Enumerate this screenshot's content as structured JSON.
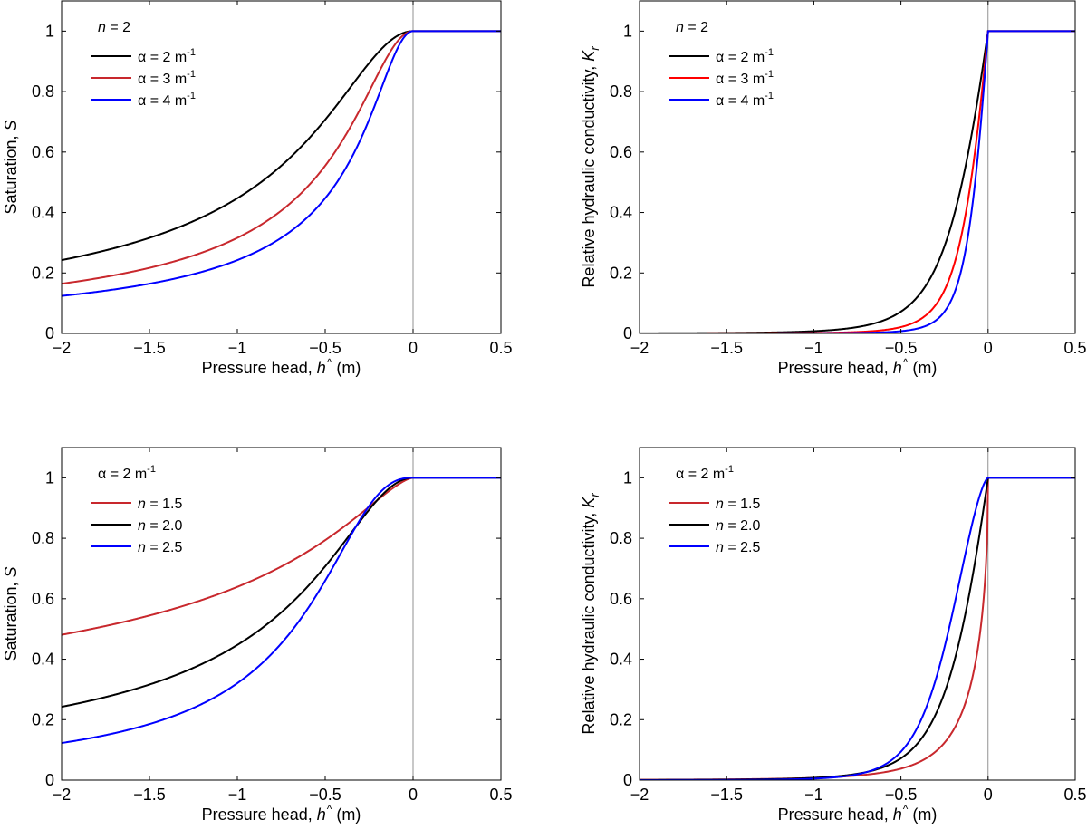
{
  "chart_data": [
    {
      "type": "line",
      "panel": "top-left",
      "xlabel": {
        "pre": "Pressure head, ",
        "var": "h",
        "hat": "^",
        "post": " (m)"
      },
      "ylabel": {
        "pre": "Saturation, ",
        "var": "S",
        "sub": ""
      },
      "xlim": [
        -2,
        0.5
      ],
      "ylim": [
        0,
        1.1
      ],
      "xticks": [
        "-2",
        "-1.5",
        "-1",
        "-0.5",
        "0",
        "0.5"
      ],
      "yticks": [
        "0",
        "0.2",
        "0.4",
        "0.6",
        "0.8",
        "1"
      ],
      "legend_title": {
        "var": "n",
        "text": " = 2",
        "sup": ""
      },
      "legend_placement": "top-left",
      "quantity": "S",
      "x_samples": [
        -2,
        -1.5,
        -1,
        -0.5,
        -0.25,
        0,
        0.5
      ],
      "series": [
        {
          "label": "α = 2 m",
          "sup": "-1",
          "alpha": 2,
          "n": 2,
          "color": "#000000",
          "values": [
            0.243,
            0.316,
            0.447,
            0.707,
            0.894,
            1,
            1
          ]
        },
        {
          "label": "α = 3 m",
          "sup": "-1",
          "alpha": 3,
          "n": 2,
          "color": "#c8282d",
          "values": [
            0.164,
            0.217,
            0.316,
            0.555,
            0.8,
            1,
            1
          ]
        },
        {
          "label": "α = 4 m",
          "sup": "-1",
          "alpha": 4,
          "n": 2,
          "color": "#0000ff",
          "values": [
            0.124,
            0.164,
            0.243,
            0.447,
            0.707,
            1,
            1
          ]
        }
      ]
    },
    {
      "type": "line",
      "panel": "top-right",
      "xlabel": {
        "pre": "Pressure head, ",
        "var": "h",
        "hat": "^",
        "post": " (m)"
      },
      "ylabel": {
        "pre": "Relative hydraulic conductivity, ",
        "var": "K",
        "sub": "r"
      },
      "xlim": [
        -2,
        0.5
      ],
      "ylim": [
        0,
        1.1
      ],
      "xticks": [
        "-2",
        "-1.5",
        "-1",
        "-0.5",
        "0",
        "0.5"
      ],
      "yticks": [
        "0",
        "0.2",
        "0.4",
        "0.6",
        "0.8",
        "1"
      ],
      "legend_title": {
        "var": "n",
        "text": " = 2",
        "sup": ""
      },
      "legend_placement": "top-left",
      "quantity": "Kr",
      "x_samples": [
        -2,
        -1,
        -0.5,
        -0.25,
        0,
        0.5
      ],
      "series": [
        {
          "label": "α = 2  m",
          "sup": "-1",
          "alpha": 2,
          "n": 2,
          "color": "#000000",
          "values": [
            0.002,
            0.015,
            0.072,
            0.289,
            1,
            1
          ]
        },
        {
          "label": "α = 3  m",
          "sup": "-1",
          "alpha": 3,
          "n": 2,
          "color": "#ff0000",
          "values": [
            0.0007,
            0.005,
            0.033,
            0.17,
            1,
            1
          ]
        },
        {
          "label": "α = 4  m",
          "sup": "-1",
          "alpha": 4,
          "n": 2,
          "color": "#0000ff",
          "values": [
            0.0003,
            0.002,
            0.015,
            0.072,
            1,
            1
          ]
        }
      ]
    },
    {
      "type": "line",
      "panel": "bottom-left",
      "xlabel": {
        "pre": "Pressure head, ",
        "var": "h",
        "hat": "^",
        "post": " (m)"
      },
      "ylabel": {
        "pre": "Saturation, ",
        "var": "S",
        "sub": ""
      },
      "xlim": [
        -2,
        0.5
      ],
      "ylim": [
        0,
        1.1
      ],
      "xticks": [
        "-2",
        "-1.5",
        "-1",
        "-0.5",
        "0",
        "0.5"
      ],
      "yticks": [
        "0",
        "0.2",
        "0.4",
        "0.6",
        "0.8",
        "1"
      ],
      "legend_title": {
        "var": "",
        "text": "α = 2 m",
        "sup": "-1"
      },
      "legend_placement": "top-left",
      "quantity": "S",
      "x_samples": [
        -2,
        -1.5,
        -1,
        -0.5,
        -0.25,
        0,
        0.5
      ],
      "series": [
        {
          "var": "n",
          "label": " = 1.5",
          "sup": "",
          "alpha": 2,
          "n": 1.5,
          "color": "#c8282d",
          "values": [
            0.481,
            0.545,
            0.639,
            0.794,
            0.904,
            1,
            1
          ]
        },
        {
          "var": "n",
          "label": " = 2.0",
          "sup": "",
          "alpha": 2,
          "n": 2.0,
          "color": "#000000",
          "values": [
            0.243,
            0.316,
            0.447,
            0.707,
            0.894,
            1,
            1
          ]
        },
        {
          "var": "n",
          "label": " = 2.5",
          "sup": "",
          "alpha": 2,
          "n": 2.5,
          "color": "#0000ff",
          "values": [
            0.123,
            0.185,
            0.321,
            0.66,
            0.907,
            1,
            1
          ]
        }
      ]
    },
    {
      "type": "line",
      "panel": "bottom-right",
      "xlabel": {
        "pre": "Pressure head, ",
        "var": "h",
        "hat": "^",
        "post": " (m)"
      },
      "ylabel": {
        "pre": "Relative hydraulic conductivity, ",
        "var": "K",
        "sub": "r"
      },
      "xlim": [
        -2,
        0.5
      ],
      "ylim": [
        0,
        1.1
      ],
      "xticks": [
        "-2",
        "-1.5",
        "-1",
        "-0.5",
        "0",
        "0.5"
      ],
      "yticks": [
        "0",
        "0.2",
        "0.4",
        "0.6",
        "0.8",
        "1"
      ],
      "legend_title": {
        "var": "",
        "text": "α = 2 m",
        "sup": "-1"
      },
      "legend_placement": "top-left",
      "quantity": "Kr",
      "x_samples": [
        -2,
        -1,
        -0.5,
        -0.25,
        0,
        0.5
      ],
      "series": [
        {
          "var": "n",
          "label": " = 1.5",
          "sup": "",
          "alpha": 2,
          "n": 1.5,
          "color": "#c8282d",
          "values": [
            0.004,
            0.016,
            0.05,
            0.15,
            1,
            1
          ]
        },
        {
          "var": "n",
          "label": " = 2.0",
          "sup": "",
          "alpha": 2,
          "n": 2.0,
          "color": "#000000",
          "values": [
            0.002,
            0.015,
            0.072,
            0.289,
            1,
            1
          ]
        },
        {
          "var": "n",
          "label": " = 2.5",
          "sup": "",
          "alpha": 2,
          "n": 2.5,
          "color": "#0000ff",
          "values": [
            0.001,
            0.011,
            0.09,
            0.45,
            1,
            1
          ]
        }
      ]
    }
  ]
}
